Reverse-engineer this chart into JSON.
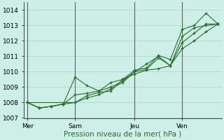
{
  "xlabel": "Pression niveau de la mer( hPa )",
  "background_color": "#ceeee8",
  "grid_color": "#aacccc",
  "line_color": "#2d6a2d",
  "dark_line_color": "#1a4a1a",
  "ylim": [
    1007.0,
    1014.5
  ],
  "yticks": [
    1007,
    1008,
    1009,
    1010,
    1011,
    1012,
    1013,
    1014
  ],
  "day_labels": [
    "Mer",
    "Sam",
    "Jeu",
    "Ven"
  ],
  "day_positions": [
    0,
    4,
    9,
    13
  ],
  "vline_positions": [
    0,
    4,
    9,
    13
  ],
  "xmin": -0.3,
  "xmax": 16.3,
  "series1": [
    [
      0,
      1008.0
    ],
    [
      1,
      1007.65
    ],
    [
      2,
      1007.75
    ],
    [
      3,
      1007.9
    ],
    [
      4,
      1009.65
    ],
    [
      5,
      1009.1
    ],
    [
      6,
      1008.75
    ],
    [
      7,
      1009.3
    ],
    [
      8,
      1009.5
    ],
    [
      9,
      1010.1
    ],
    [
      10,
      1010.25
    ],
    [
      11,
      1011.05
    ],
    [
      12,
      1010.8
    ],
    [
      13,
      1012.75
    ],
    [
      14,
      1013.0
    ],
    [
      15,
      1013.8
    ],
    [
      16,
      1013.1
    ]
  ],
  "series2": [
    [
      0,
      1008.0
    ],
    [
      1,
      1007.65
    ],
    [
      2,
      1007.75
    ],
    [
      3,
      1007.9
    ],
    [
      4,
      1008.5
    ],
    [
      5,
      1008.6
    ],
    [
      6,
      1008.75
    ],
    [
      7,
      1009.0
    ],
    [
      8,
      1009.4
    ],
    [
      9,
      1010.0
    ],
    [
      10,
      1010.5
    ],
    [
      11,
      1011.0
    ],
    [
      12,
      1010.4
    ],
    [
      13,
      1011.9
    ],
    [
      14,
      1012.5
    ],
    [
      15,
      1013.1
    ],
    [
      16,
      1013.1
    ]
  ],
  "series3": [
    [
      0,
      1008.0
    ],
    [
      1,
      1007.65
    ],
    [
      2,
      1007.75
    ],
    [
      3,
      1007.9
    ],
    [
      4,
      1008.0
    ],
    [
      5,
      1008.45
    ],
    [
      6,
      1008.65
    ],
    [
      7,
      1008.75
    ],
    [
      8,
      1009.5
    ],
    [
      9,
      1009.85
    ],
    [
      10,
      1010.1
    ],
    [
      11,
      1010.2
    ],
    [
      12,
      1010.4
    ],
    [
      13,
      1011.5
    ],
    [
      14,
      1012.0
    ],
    [
      15,
      1012.6
    ],
    [
      16,
      1013.1
    ]
  ],
  "series4": [
    [
      0,
      1008.0
    ],
    [
      4,
      1008.0
    ],
    [
      5,
      1008.3
    ],
    [
      6,
      1008.5
    ],
    [
      7,
      1008.9
    ],
    [
      8,
      1009.3
    ],
    [
      9,
      1010.0
    ],
    [
      10,
      1010.15
    ],
    [
      11,
      1010.9
    ],
    [
      12,
      1010.4
    ],
    [
      13,
      1012.3
    ],
    [
      14,
      1012.85
    ],
    [
      15,
      1013.0
    ],
    [
      16,
      1013.1
    ]
  ]
}
